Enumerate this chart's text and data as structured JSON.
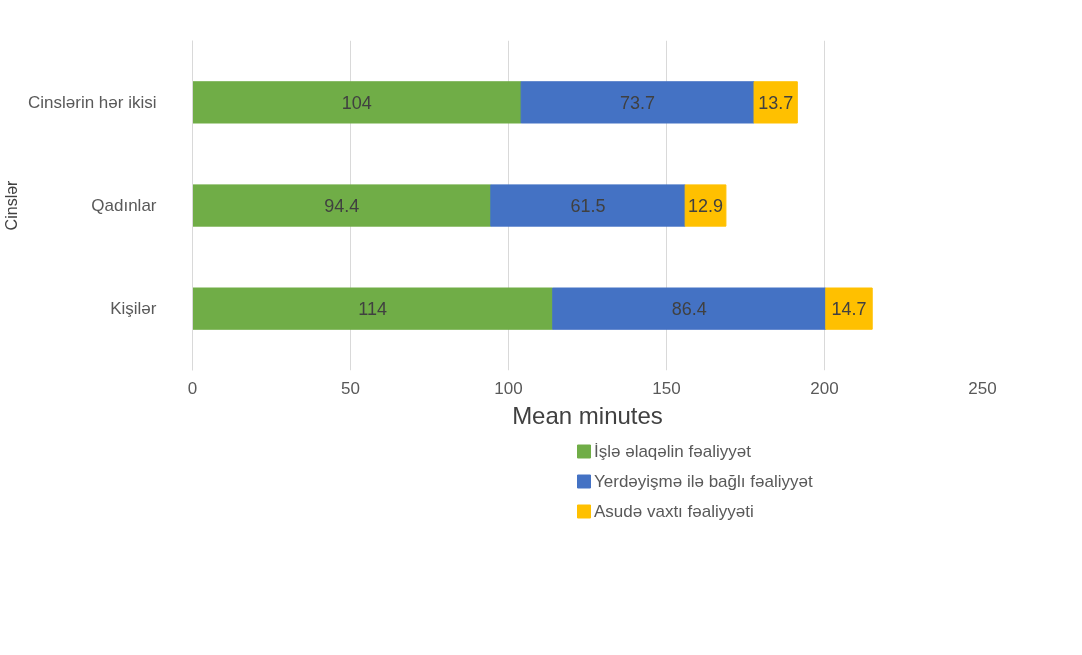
{
  "chart_data": {
    "type": "bar",
    "orientation": "horizontal",
    "stacked": true,
    "xlabel": "Mean minutes",
    "ylabel": "Cinslər",
    "categories": [
      "Cinslərin hər ikisi",
      "Qadınlar",
      "Kişilər"
    ],
    "series": [
      {
        "name": "İşlə əlaqəlin fəaliyyət",
        "color": "#70ad47",
        "values": [
          104,
          94.4,
          114
        ]
      },
      {
        "name": "Yerdəyişmə ilə bağlı fəaliyyət",
        "color": "#4472c4",
        "values": [
          73.7,
          61.5,
          86.4
        ]
      },
      {
        "name": "Asudə vaxtı fəaliyyəti",
        "color": "#ffc000",
        "values": [
          13.7,
          12.9,
          14.7
        ]
      }
    ],
    "xlim": [
      0,
      250
    ],
    "xticks": [
      0,
      50,
      100,
      150,
      200,
      250
    ],
    "grid": "x",
    "legend": "bottom",
    "data_labels": true
  }
}
